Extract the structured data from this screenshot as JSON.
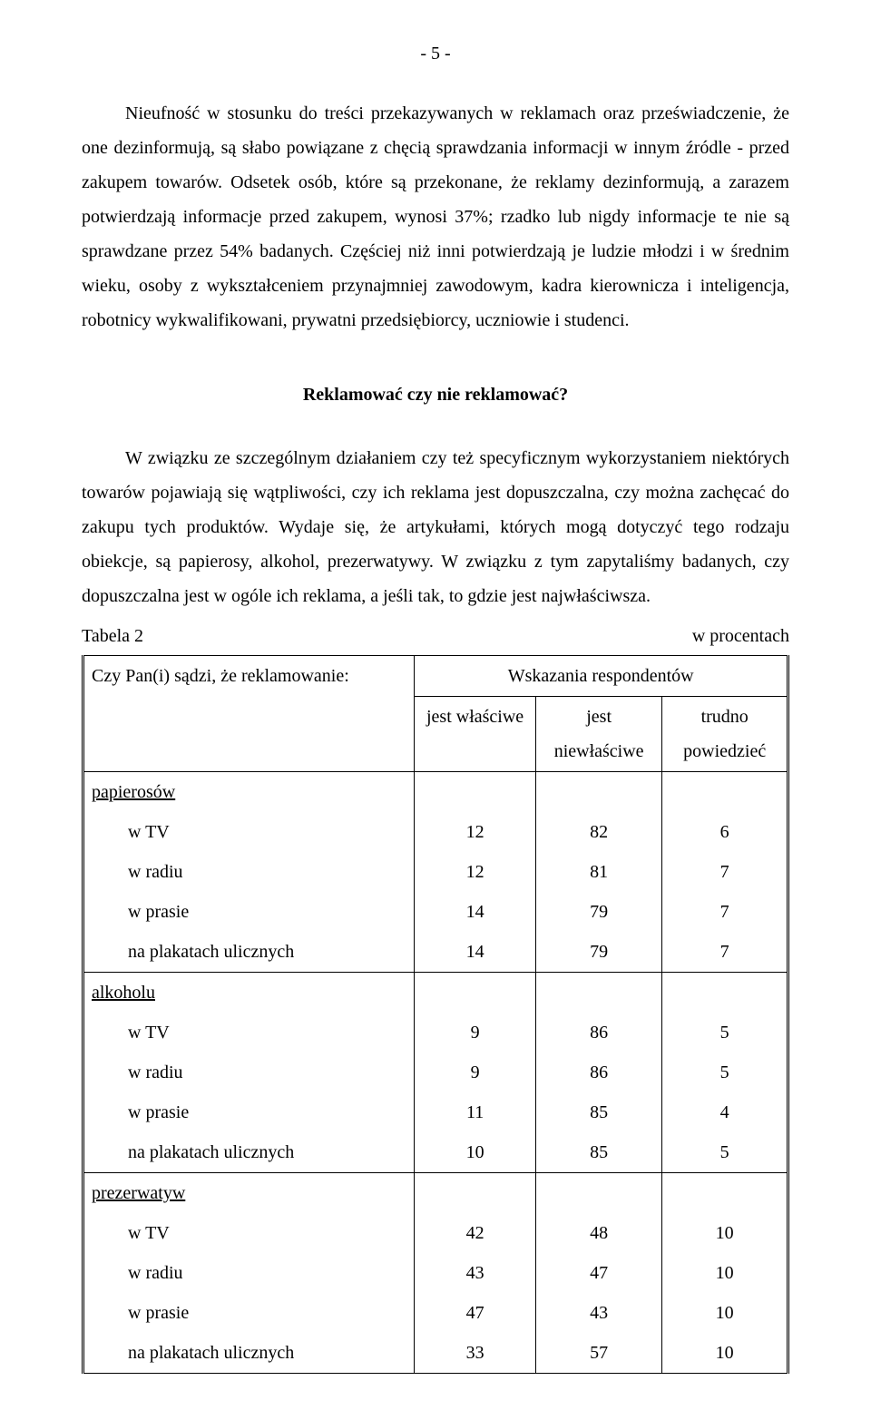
{
  "page_number": "- 5 -",
  "paragraphs": {
    "p1": "Nieufność w stosunku do treści przekazywanych w reklamach oraz przeświadczenie, że one dezinformują, są słabo powiązane z chęcią sprawdzania informacji w innym źródle - przed zakupem towarów. Odsetek osób, które są przekonane, że reklamy dezinformują, a zarazem potwierdzają informacje przed zakupem, wynosi 37%; rzadko lub nigdy informacje te nie są sprawdzane przez 54% badanych. Częściej niż inni potwierdzają je ludzie młodzi i w średnim wieku, osoby z wykształceniem przynajmniej zawodowym, kadra kierownicza i inteligencja, robotnicy wykwalifikowani, prywatni przedsiębiorcy, uczniowie i studenci.",
    "p2": "W związku ze szczególnym działaniem czy też specyficznym wykorzystaniem niektórych towarów pojawiają się wątpliwości, czy ich reklama jest dopuszczalna, czy można zachęcać do zakupu tych produktów. Wydaje się, że artykułami, których mogą dotyczyć tego rodzaju obiekcje, są papierosy, alkohol, prezerwatywy. W związku z tym zapytaliśmy badanych, czy dopuszczalna jest w ogóle ich reklama, a jeśli tak, to gdzie jest najwłaściwsza."
  },
  "heading": "Reklamować czy nie reklamować?",
  "table_caption_left": "Tabela 2",
  "table_caption_right": "w procentach",
  "table": {
    "question": "Czy Pan(i) sądzi, że reklamowanie:",
    "resp_header": "Wskazania respondentów",
    "columns": [
      "jest właściwe",
      "jest niewłaściwe",
      "trudno powiedzieć"
    ],
    "groups": [
      {
        "label": "papierosów",
        "rows": [
          {
            "label": "w TV",
            "vals": [
              "12",
              "82",
              "6"
            ]
          },
          {
            "label": "w radiu",
            "vals": [
              "12",
              "81",
              "7"
            ]
          },
          {
            "label": "w prasie",
            "vals": [
              "14",
              "79",
              "7"
            ]
          },
          {
            "label": "na plakatach ulicznych",
            "vals": [
              "14",
              "79",
              "7"
            ]
          }
        ]
      },
      {
        "label": "alkoholu",
        "rows": [
          {
            "label": "w TV",
            "vals": [
              "9",
              "86",
              "5"
            ]
          },
          {
            "label": "w radiu",
            "vals": [
              "9",
              "86",
              "5"
            ]
          },
          {
            "label": "w prasie",
            "vals": [
              "11",
              "85",
              "4"
            ]
          },
          {
            "label": "na plakatach ulicznych",
            "vals": [
              "10",
              "85",
              "5"
            ]
          }
        ]
      },
      {
        "label": "prezerwatyw",
        "rows": [
          {
            "label": "w TV",
            "vals": [
              "42",
              "48",
              "10"
            ]
          },
          {
            "label": "w radiu",
            "vals": [
              "43",
              "47",
              "10"
            ]
          },
          {
            "label": "w prasie",
            "vals": [
              "47",
              "43",
              "10"
            ]
          },
          {
            "label": "na plakatach ulicznych",
            "vals": [
              "33",
              "57",
              "10"
            ]
          }
        ]
      }
    ]
  }
}
